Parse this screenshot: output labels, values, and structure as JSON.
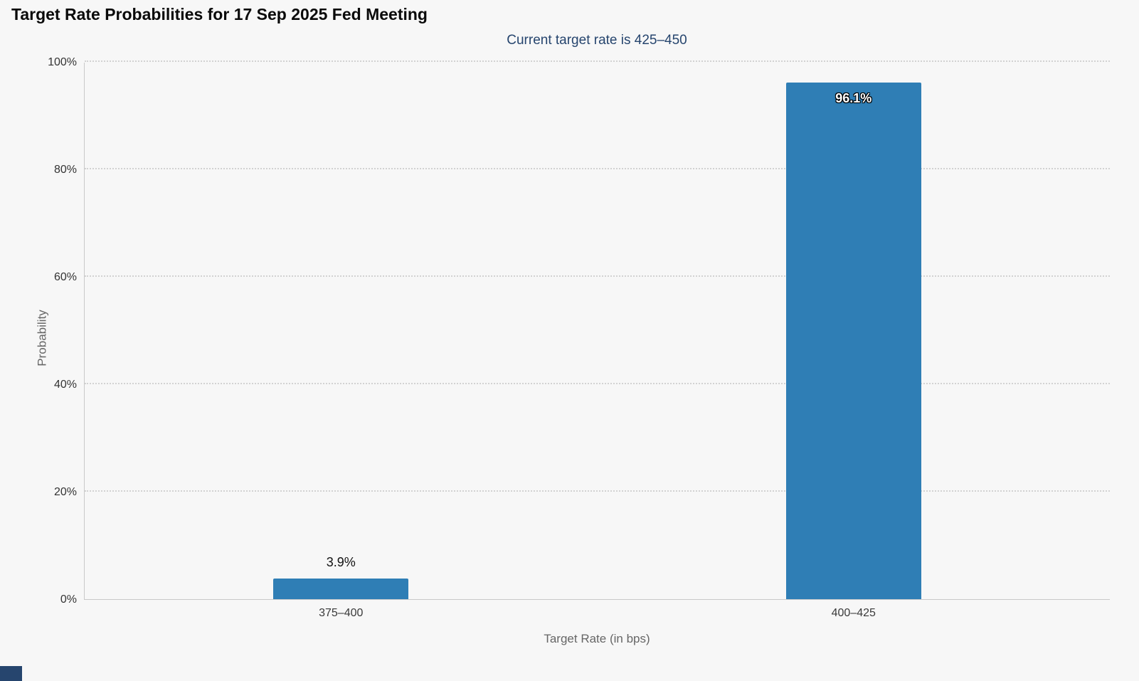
{
  "page": {
    "title": "Target Rate Probabilities for 17 Sep 2025 Fed Meeting",
    "subtitle": "Current target rate is 425–450"
  },
  "chart_data": {
    "type": "bar",
    "title": "Target Rate Probabilities for 17 Sep 2025 Fed Meeting",
    "subtitle": "Current target rate is 425–450",
    "categories": [
      "375–400",
      "400–425"
    ],
    "values": [
      3.9,
      96.1
    ],
    "value_labels": [
      "3.9%",
      "96.1%"
    ],
    "xlabel": "Target Rate (in bps)",
    "ylabel": "Probability",
    "ylim": [
      0,
      100
    ],
    "yticks": [
      0,
      20,
      40,
      60,
      80,
      100
    ],
    "ytick_labels": [
      "0%",
      "20%",
      "40%",
      "60%",
      "80%",
      "100%"
    ],
    "grid": "horizontal-dotted",
    "legend": "none",
    "bar_color": "#2f7eb5",
    "background_color": "#f7f7f7",
    "subtitle_color": "#26456e"
  },
  "footer": {
    "accent_color": "#26456e"
  }
}
